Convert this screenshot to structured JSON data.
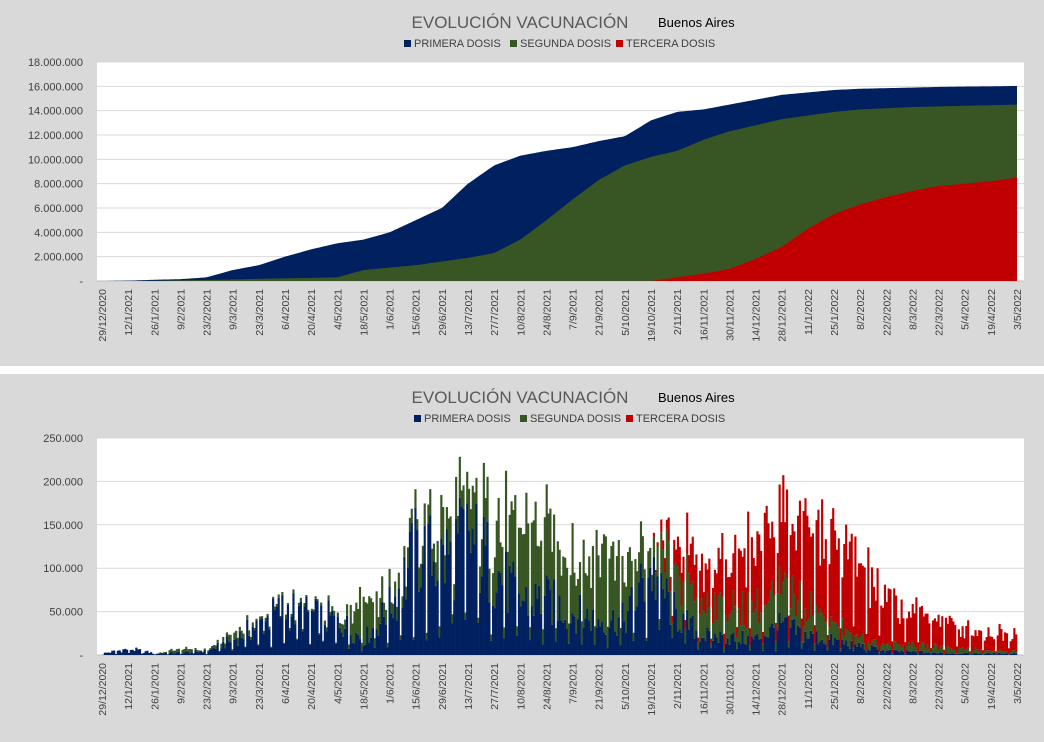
{
  "colors": {
    "primera": "#002060",
    "segunda": "#375623",
    "tercera": "#c00000",
    "grid": "#d9d9d9",
    "panel": "#d9d9d9",
    "plot": "#ffffff"
  },
  "legend": [
    "PRIMERA DOSIS",
    "SEGUNDA DOSIS",
    "TERCERA DOSIS"
  ],
  "x_ticks": [
    "29/12/2020",
    "12/1/2021",
    "26/1/2021",
    "9/2/2021",
    "23/2/2021",
    "9/3/2021",
    "23/3/2021",
    "6/4/2021",
    "20/4/2021",
    "4/5/2021",
    "18/5/2021",
    "1/6/2021",
    "15/6/2021",
    "29/6/2021",
    "13/7/2021",
    "27/7/2021",
    "10/8/2021",
    "24/8/2021",
    "7/9/2021",
    "21/9/2021",
    "5/10/2021",
    "19/10/2021",
    "2/11/2021",
    "16/11/2021",
    "30/11/2021",
    "14/12/2021",
    "28/12/2021",
    "11/1/2022",
    "25/1/2022",
    "8/2/2022",
    "22/2/2022",
    "8/3/2022",
    "22/3/2022",
    "5/4/2022",
    "19/4/2022",
    "3/5/2022"
  ],
  "chart_data": [
    {
      "type": "area",
      "title": "EVOLUCIÓN VACUNACIÓN",
      "subtitle": "Buenos Aires",
      "y_tick_labels": [
        "-",
        "2.000.000",
        "4.000.000",
        "6.000.000",
        "8.000.000",
        "10.000.000",
        "12.000.000",
        "14.000.000",
        "16.000.000",
        "18.000.000"
      ],
      "ylim": [
        0,
        18000000
      ],
      "legend_position": "top",
      "grid": true,
      "series": [
        {
          "name": "PRIMERA DOSIS",
          "values": [
            0,
            30000,
            100000,
            150000,
            300000,
            900000,
            1300000,
            2000000,
            2600000,
            3100000,
            3400000,
            4000000,
            5000000,
            6000000,
            8000000,
            9500000,
            10300000,
            10700000,
            11000000,
            11500000,
            11900000,
            13200000,
            13900000,
            14100000,
            14500000,
            14900000,
            15300000,
            15500000,
            15700000,
            15800000,
            15850000,
            15900000,
            15950000,
            15980000,
            16000000,
            16030000
          ]
        },
        {
          "name": "SEGUNDA DOSIS",
          "values": [
            0,
            5000,
            20000,
            60000,
            90000,
            120000,
            180000,
            220000,
            260000,
            300000,
            900000,
            1100000,
            1300000,
            1600000,
            1900000,
            2300000,
            3400000,
            5000000,
            6700000,
            8300000,
            9500000,
            10200000,
            10700000,
            11600000,
            12300000,
            12800000,
            13300000,
            13600000,
            13900000,
            14100000,
            14200000,
            14300000,
            14350000,
            14400000,
            14450000,
            14500000
          ]
        },
        {
          "name": "TERCERA DOSIS",
          "values": [
            0,
            0,
            0,
            0,
            0,
            0,
            0,
            0,
            0,
            0,
            0,
            0,
            0,
            0,
            0,
            0,
            0,
            0,
            0,
            0,
            0,
            0,
            300000,
            600000,
            1000000,
            1800000,
            2800000,
            4300000,
            5500000,
            6300000,
            6900000,
            7400000,
            7800000,
            8000000,
            8200000,
            8500000
          ]
        }
      ]
    },
    {
      "type": "bar",
      "title": "EVOLUCIÓN VACUNACIÓN",
      "subtitle": "Buenos Aires",
      "y_tick_labels": [
        "-",
        "50.000",
        "100.000",
        "150.000",
        "200.000",
        "250.000"
      ],
      "ylim": [
        0,
        250000
      ],
      "legend_position": "top",
      "grid": true,
      "stacked": true,
      "series": [
        {
          "name": "PRIMERA DOSIS",
          "values": [
            2000,
            8000,
            2000,
            3000,
            5000,
            20000,
            40000,
            60000,
            50000,
            45000,
            20000,
            60000,
            130000,
            120000,
            150000,
            110000,
            70000,
            70000,
            55000,
            45000,
            45000,
            110000,
            50000,
            25000,
            22000,
            20000,
            38000,
            25000,
            18000,
            12000,
            5000,
            4000,
            3000,
            2000,
            2000,
            2000
          ]
        },
        {
          "name": "SEGUNDA DOSIS",
          "values": [
            0,
            0,
            0,
            5000,
            1000,
            8000,
            3000,
            4000,
            3000,
            6000,
            60000,
            15000,
            20000,
            40000,
            40000,
            60000,
            80000,
            90000,
            80000,
            90000,
            70000,
            20000,
            60000,
            40000,
            40000,
            40000,
            40000,
            40000,
            25000,
            10000,
            8000,
            8000,
            8000,
            6000,
            3000,
            3000
          ]
        },
        {
          "name": "TERCERA DOSIS",
          "values": [
            0,
            0,
            0,
            0,
            0,
            0,
            0,
            0,
            0,
            0,
            0,
            0,
            0,
            0,
            0,
            0,
            0,
            0,
            0,
            0,
            0,
            0,
            30000,
            45000,
            60000,
            80000,
            100000,
            100000,
            100000,
            95000,
            55000,
            45000,
            35000,
            25000,
            22000,
            25000
          ]
        }
      ]
    }
  ]
}
